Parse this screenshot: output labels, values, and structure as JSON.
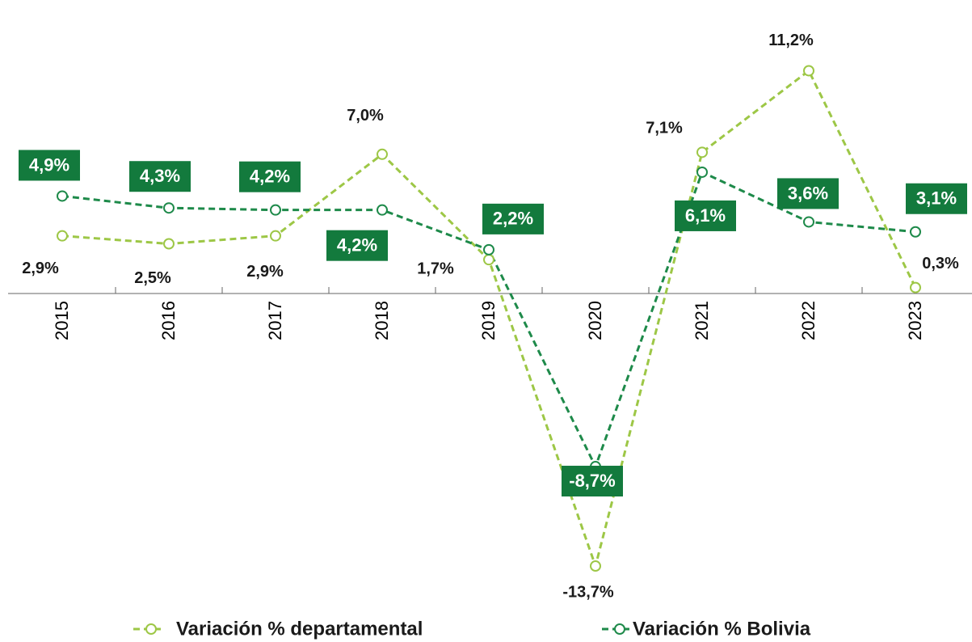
{
  "chart_data": {
    "type": "line",
    "categories": [
      "2015",
      "2016",
      "2017",
      "2018",
      "2019",
      "2020",
      "2021",
      "2022",
      "2023"
    ],
    "series": [
      {
        "name": "Variación % departamental",
        "color": "#9dc746",
        "values": [
          2.9,
          2.5,
          2.9,
          7.0,
          1.7,
          -13.7,
          7.1,
          11.2,
          0.3
        ],
        "value_labels": [
          "2,9%",
          "2,5%",
          "2,9%",
          "7,0%",
          "1,7%",
          "-13,7%",
          "7,1%",
          "11,2%",
          "0,3%"
        ]
      },
      {
        "name": "Variación % Bolivia",
        "color": "#1e8a4a",
        "values": [
          4.9,
          4.3,
          4.2,
          4.2,
          2.2,
          -8.7,
          6.1,
          3.6,
          3.1
        ],
        "value_labels": [
          "4,9%",
          "4,3%",
          "4,2%",
          "4,2%",
          "2,2%",
          "-8,7%",
          "6,1%",
          "3,6%",
          "3,1%"
        ]
      }
    ],
    "label_box_color": "#137a3d"
  }
}
